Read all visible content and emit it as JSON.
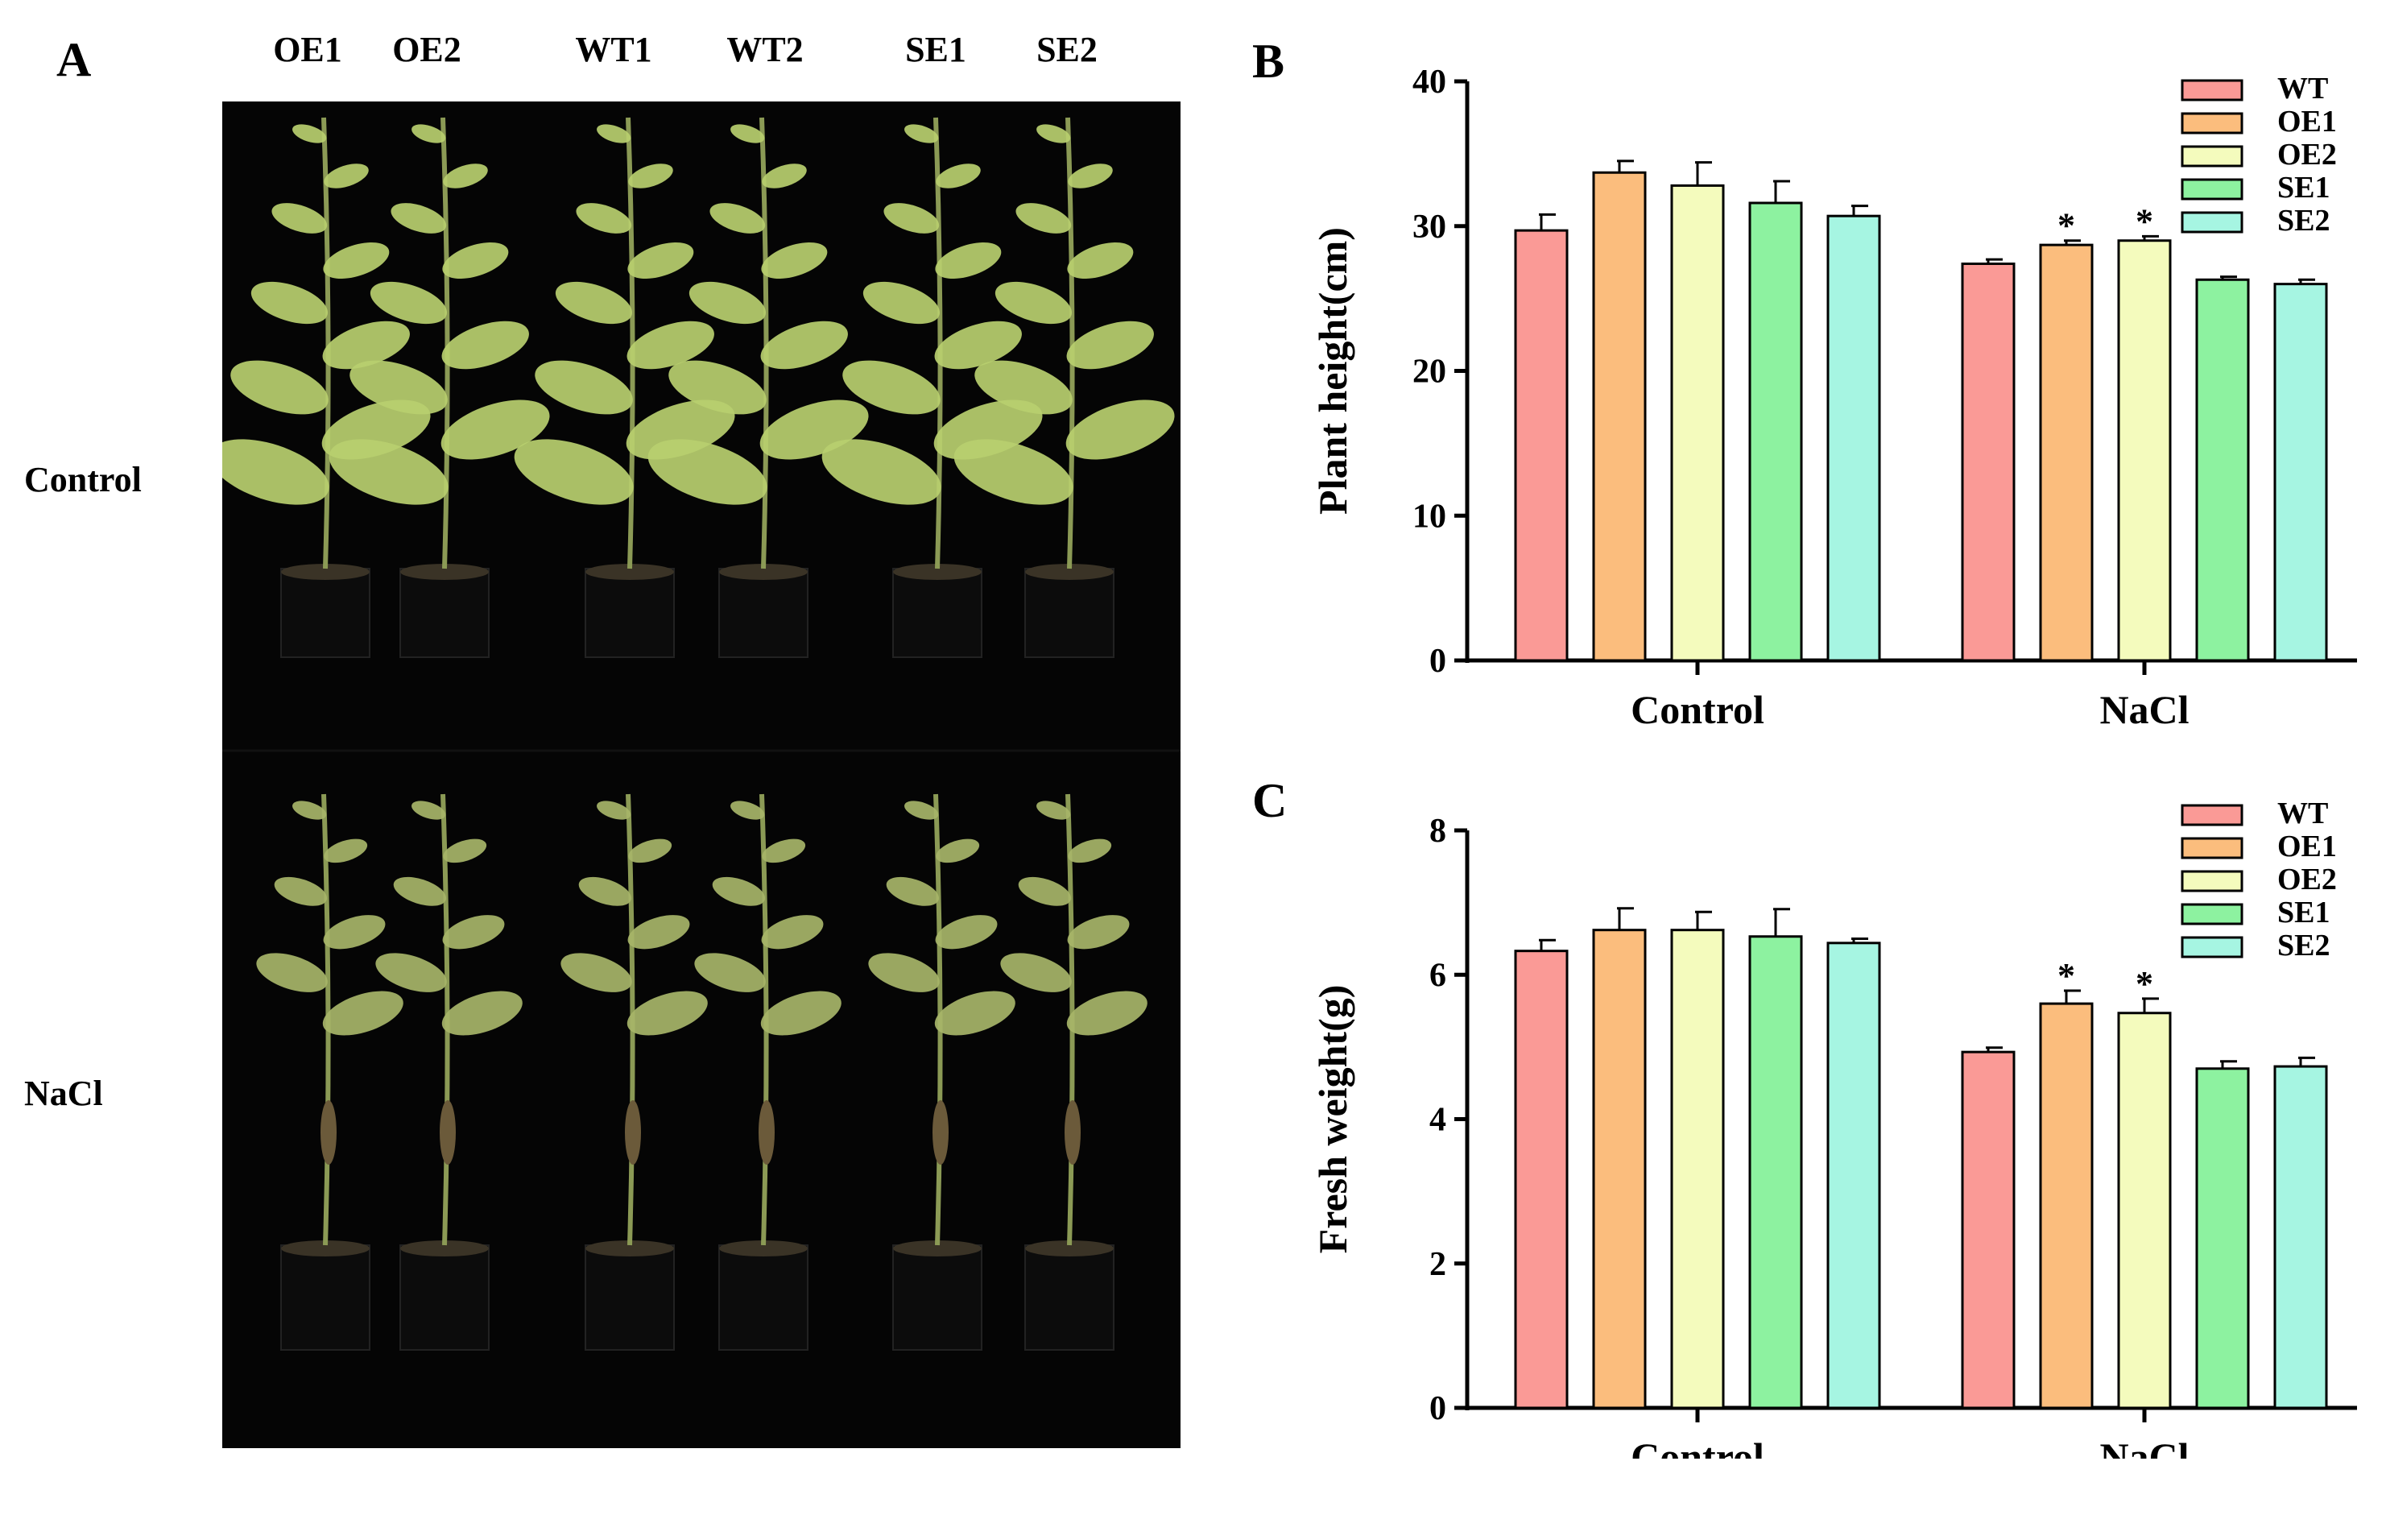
{
  "panel_a": {
    "letter": "A",
    "genotypes": [
      "OE1",
      "OE2",
      "WT1",
      "WT2",
      "SE1",
      "SE2"
    ],
    "rows": [
      "Control",
      "NaCl"
    ]
  },
  "colors": {
    "WT": "#fa9a96",
    "OE1": "#fbbd7d",
    "OE2": "#f4fbbd",
    "SE1": "#8df2a0",
    "SE2": "#a6f5e2",
    "photo_bg": "#050505",
    "leaf_healthy": "#b9cf6f",
    "leaf_stressed": "#a7b569"
  },
  "chart_data": [
    {
      "panel": "B",
      "type": "bar",
      "title": "",
      "xlabel": "",
      "ylabel": "Plant height(cm)",
      "ylim": [
        0,
        40
      ],
      "yticks": [
        "0",
        "10",
        "20",
        "30",
        "40"
      ],
      "categories": [
        "Control",
        "NaCl"
      ],
      "series": [
        {
          "name": "WT",
          "values": [
            29.7,
            27.4
          ],
          "errors": [
            1.1,
            0.3
          ],
          "sig": [
            "",
            ""
          ]
        },
        {
          "name": "OE1",
          "values": [
            33.7,
            28.7
          ],
          "errors": [
            0.8,
            0.3
          ],
          "sig": [
            "",
            "*"
          ]
        },
        {
          "name": "OE2",
          "values": [
            32.8,
            29.0
          ],
          "errors": [
            1.6,
            0.3
          ],
          "sig": [
            "",
            "*"
          ]
        },
        {
          "name": "SE1",
          "values": [
            31.6,
            26.3
          ],
          "errors": [
            1.5,
            0.2
          ],
          "sig": [
            "",
            ""
          ]
        },
        {
          "name": "SE2",
          "values": [
            30.7,
            26.0
          ],
          "errors": [
            0.7,
            0.3
          ],
          "sig": [
            "",
            ""
          ]
        }
      ],
      "legend": "top-right"
    },
    {
      "panel": "C",
      "type": "bar",
      "title": "",
      "xlabel": "",
      "ylabel": "Fresh weight(g)",
      "ylim": [
        0,
        8
      ],
      "yticks": [
        "0",
        "2",
        "4",
        "6",
        "8"
      ],
      "categories": [
        "Control",
        "NaCl"
      ],
      "series": [
        {
          "name": "WT",
          "values": [
            6.33,
            4.93
          ],
          "errors": [
            0.15,
            0.06
          ],
          "sig": [
            "",
            ""
          ]
        },
        {
          "name": "OE1",
          "values": [
            6.62,
            5.6
          ],
          "errors": [
            0.3,
            0.18
          ],
          "sig": [
            "",
            "*"
          ]
        },
        {
          "name": "OE2",
          "values": [
            6.62,
            5.47
          ],
          "errors": [
            0.25,
            0.2
          ],
          "sig": [
            "",
            "*"
          ]
        },
        {
          "name": "SE1",
          "values": [
            6.53,
            4.7
          ],
          "errors": [
            0.38,
            0.1
          ],
          "sig": [
            "",
            ""
          ]
        },
        {
          "name": "SE2",
          "values": [
            6.44,
            4.73
          ],
          "errors": [
            0.06,
            0.12
          ],
          "sig": [
            "",
            ""
          ]
        }
      ],
      "legend": "top-right"
    }
  ]
}
